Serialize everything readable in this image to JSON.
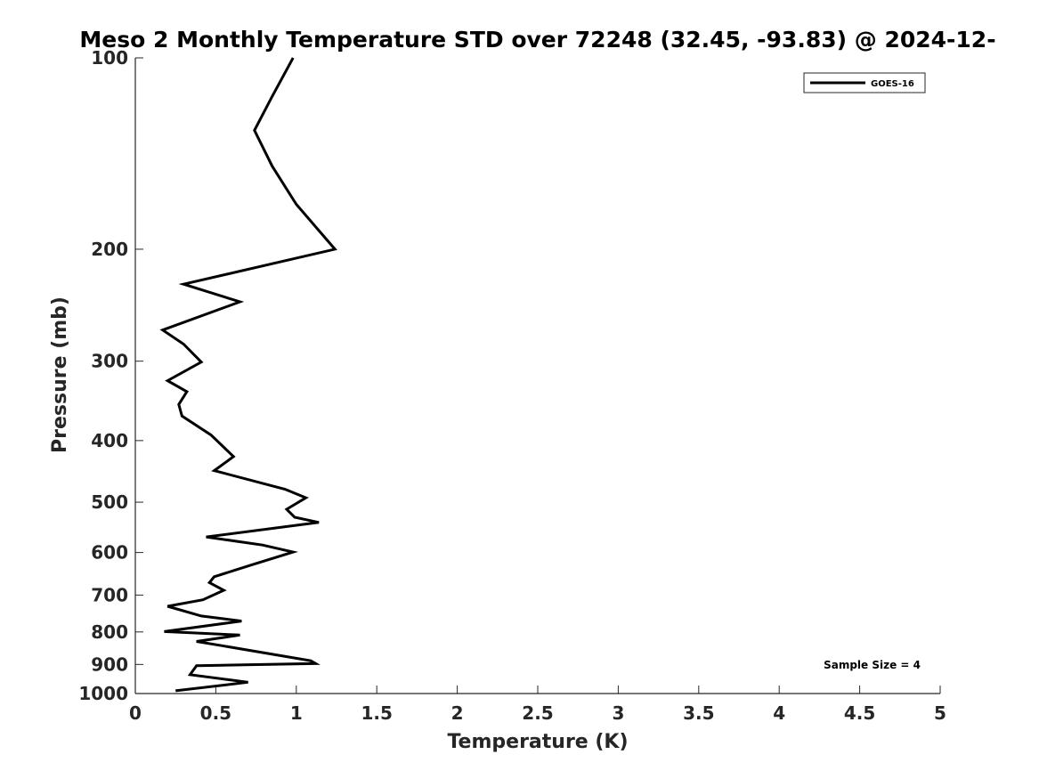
{
  "chart_data": {
    "type": "line",
    "title": "Meso 2 Monthly Temperature STD over 72248 (32.45, -93.83) @ 2024-12-",
    "xlabel": "Temperature (K)",
    "ylabel": "Pressure (mb)",
    "xlim": [
      0,
      5
    ],
    "ylim": [
      100,
      1000
    ],
    "y_scale": "log",
    "y_reversed": true,
    "grid": false,
    "legend_position": "top-right",
    "x_ticks": [
      0,
      0.5,
      1,
      1.5,
      2,
      2.5,
      3,
      3.5,
      4,
      4.5,
      5
    ],
    "x_tick_labels": [
      "0",
      "0.5",
      "1",
      "1.5",
      "2",
      "2.5",
      "3",
      "3.5",
      "4",
      "4.5",
      "5"
    ],
    "y_ticks": [
      100,
      200,
      300,
      400,
      500,
      600,
      700,
      800,
      900,
      1000
    ],
    "y_tick_labels": [
      "100",
      "200",
      "300",
      "400",
      "500",
      "600",
      "700",
      "800",
      "900",
      "1000"
    ],
    "annotation": "Sample Size = 4",
    "series": [
      {
        "name": "GOES-16",
        "color": "#000000",
        "x": [
          0.98,
          0.85,
          0.74,
          0.85,
          1.0,
          1.24,
          0.3,
          0.65,
          0.17,
          0.3,
          0.41,
          0.2,
          0.32,
          0.27,
          0.29,
          0.47,
          0.61,
          0.49,
          0.93,
          1.06,
          0.94,
          0.99,
          1.14,
          0.44,
          0.79,
          0.98,
          0.71,
          0.49,
          0.46,
          0.55,
          0.42,
          0.2,
          0.41,
          0.66,
          0.18,
          0.65,
          0.38,
          0.54,
          0.86,
          1.09,
          1.12,
          0.38,
          0.34,
          0.7,
          0.25
        ],
        "y": [
          100,
          115,
          130,
          148,
          170,
          200,
          227,
          242,
          268,
          282,
          301,
          322,
          335,
          351,
          366,
          392,
          424,
          446,
          477,
          492,
          513,
          528,
          538,
          567,
          584,
          599,
          629,
          655,
          669,
          688,
          712,
          729,
          755,
          769,
          799,
          809,
          828,
          841,
          868,
          888,
          897,
          904,
          934,
          960,
          990
        ]
      }
    ]
  }
}
